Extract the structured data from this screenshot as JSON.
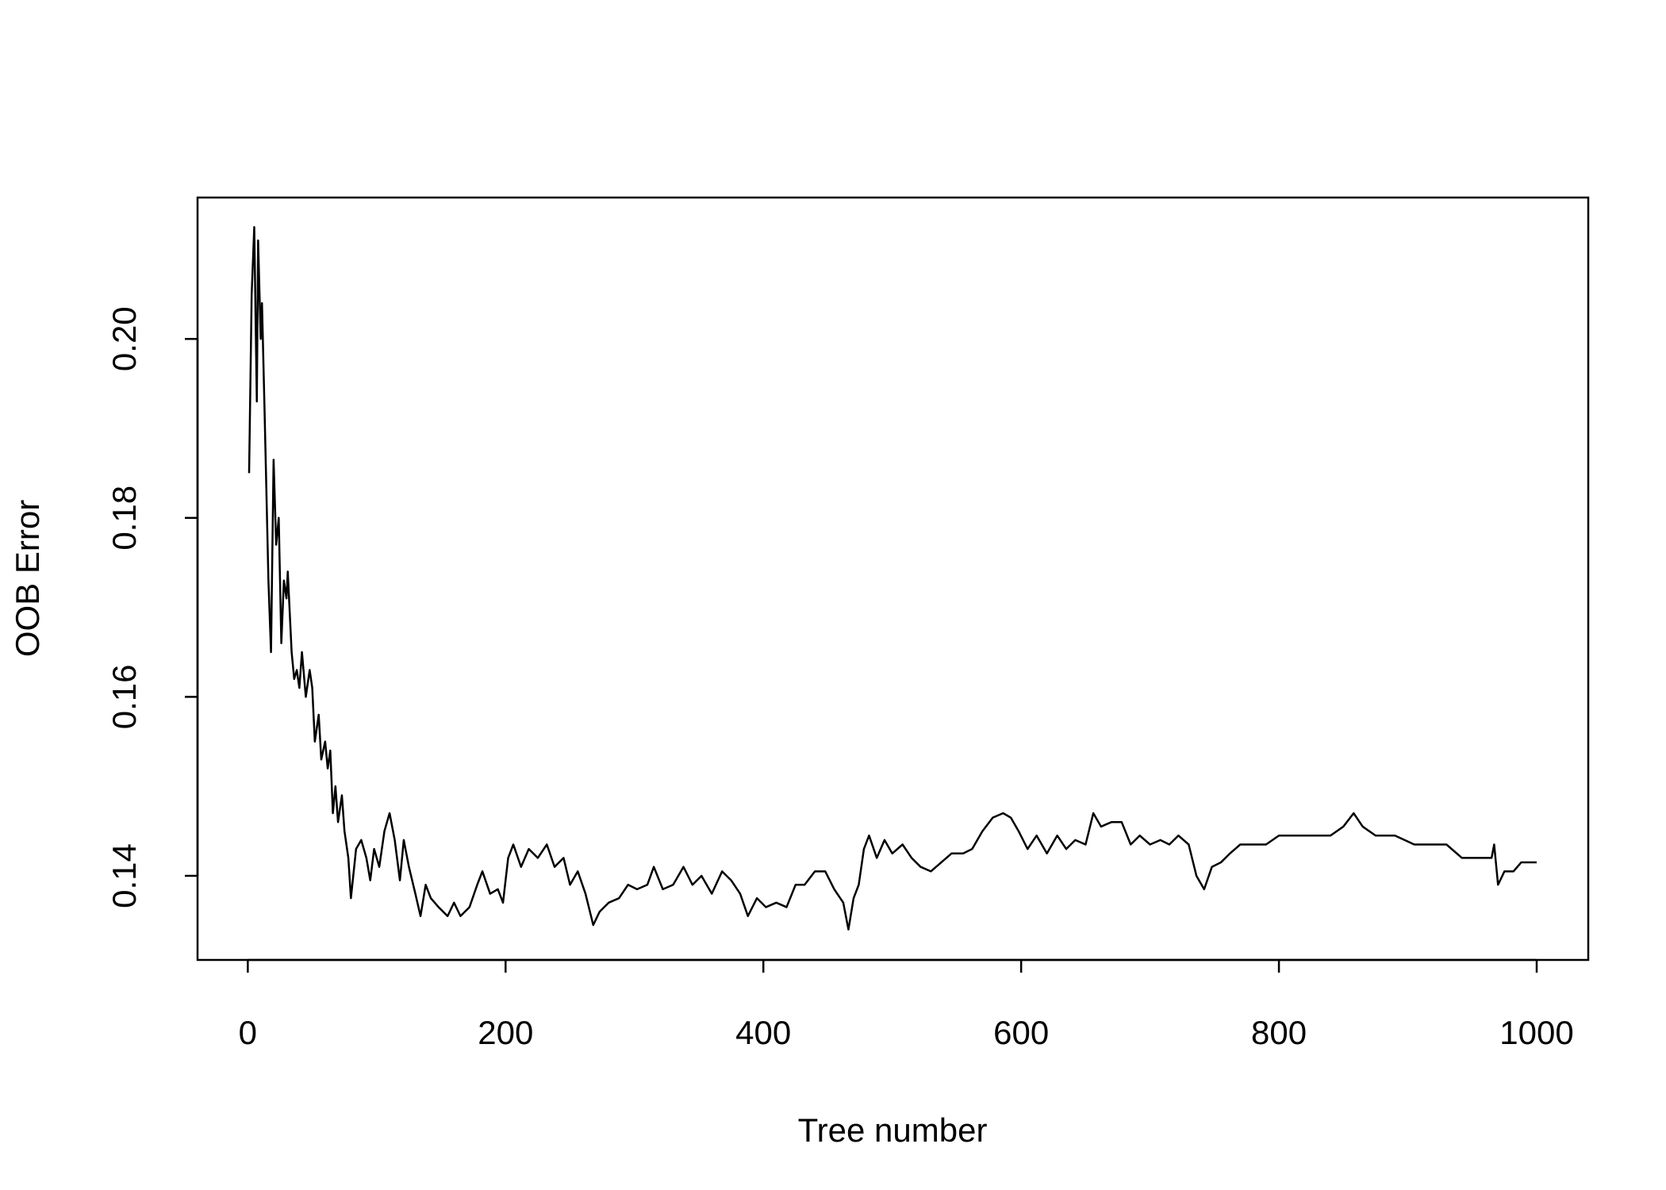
{
  "chart_data": {
    "type": "line",
    "x_label": "Tree number",
    "y_label": "OOB Error",
    "x": [
      1,
      3,
      5,
      7,
      8,
      10,
      11,
      13,
      16,
      18,
      20,
      22,
      24,
      26,
      28,
      30,
      31,
      34,
      36,
      38,
      40,
      42,
      45,
      48,
      50,
      52,
      55,
      57,
      60,
      62,
      64,
      66,
      68,
      70,
      73,
      75,
      78,
      80,
      84,
      88,
      92,
      95,
      98,
      102,
      106,
      110,
      114,
      118,
      121,
      125,
      130,
      134,
      138,
      142,
      148,
      155,
      160,
      165,
      172,
      178,
      182,
      188,
      194,
      198,
      202,
      206,
      212,
      218,
      225,
      232,
      238,
      245,
      250,
      256,
      262,
      268,
      273,
      280,
      288,
      295,
      302,
      310,
      315,
      322,
      330,
      338,
      345,
      352,
      360,
      368,
      375,
      382,
      388,
      395,
      402,
      410,
      418,
      425,
      432,
      440,
      448,
      455,
      462,
      466,
      470,
      474,
      478,
      482,
      488,
      494,
      500,
      508,
      515,
      522,
      530,
      538,
      546,
      555,
      562,
      570,
      578,
      586,
      592,
      598,
      605,
      612,
      620,
      628,
      635,
      642,
      650,
      656,
      662,
      670,
      678,
      685,
      692,
      700,
      708,
      715,
      722,
      730,
      736,
      742,
      748,
      755,
      762,
      770,
      780,
      790,
      800,
      810,
      820,
      830,
      840,
      850,
      858,
      865,
      875,
      890,
      905,
      920,
      930,
      942,
      955,
      965,
      967,
      970,
      975,
      982,
      988,
      995,
      1000
    ],
    "series": [
      {
        "color": "#000000",
        "values": [
          0.185,
          0.205,
          0.2125,
          0.193,
          0.211,
          0.2,
          0.204,
          0.192,
          0.173,
          0.165,
          0.1865,
          0.177,
          0.18,
          0.166,
          0.173,
          0.171,
          0.174,
          0.165,
          0.162,
          0.163,
          0.161,
          0.165,
          0.16,
          0.163,
          0.161,
          0.155,
          0.158,
          0.153,
          0.155,
          0.152,
          0.154,
          0.147,
          0.15,
          0.146,
          0.149,
          0.145,
          0.142,
          0.1375,
          0.143,
          0.144,
          0.142,
          0.1395,
          0.143,
          0.141,
          0.145,
          0.147,
          0.144,
          0.1395,
          0.144,
          0.141,
          0.138,
          0.1355,
          0.139,
          0.1375,
          0.1365,
          0.1355,
          0.137,
          0.1355,
          0.1365,
          0.139,
          0.1405,
          0.138,
          0.1385,
          0.137,
          0.142,
          0.1435,
          0.141,
          0.143,
          0.142,
          0.1435,
          0.141,
          0.142,
          0.139,
          0.1405,
          0.138,
          0.1345,
          0.136,
          0.137,
          0.1375,
          0.139,
          0.1385,
          0.139,
          0.141,
          0.1385,
          0.139,
          0.141,
          0.139,
          0.14,
          0.138,
          0.1405,
          0.1395,
          0.138,
          0.1355,
          0.1375,
          0.1365,
          0.137,
          0.1365,
          0.139,
          0.139,
          0.1405,
          0.1405,
          0.1385,
          0.137,
          0.134,
          0.1375,
          0.139,
          0.143,
          0.1445,
          0.142,
          0.144,
          0.1425,
          0.1435,
          0.142,
          0.141,
          0.1405,
          0.1415,
          0.1425,
          0.1425,
          0.143,
          0.145,
          0.1465,
          0.147,
          0.1465,
          0.145,
          0.143,
          0.1445,
          0.1425,
          0.1445,
          0.143,
          0.144,
          0.1435,
          0.147,
          0.1455,
          0.146,
          0.146,
          0.1435,
          0.1445,
          0.1435,
          0.144,
          0.1435,
          0.1445,
          0.1435,
          0.14,
          0.1385,
          0.141,
          0.1415,
          0.1425,
          0.1435,
          0.1435,
          0.1435,
          0.1445,
          0.1445,
          0.1445,
          0.1445,
          0.1445,
          0.1455,
          0.147,
          0.1455,
          0.1445,
          0.1445,
          0.1435,
          0.1435,
          0.1435,
          0.142,
          0.142,
          0.142,
          0.1435,
          0.139,
          0.1405,
          0.1405,
          0.1415,
          0.1415,
          0.1415
        ]
      }
    ],
    "xlim": [
      -39,
      1040
    ],
    "ylim": [
      0.1306,
      0.2158
    ],
    "xticks": [
      0,
      200,
      400,
      600,
      800,
      1000
    ],
    "yticks": [
      {
        "value": 0.14,
        "label": "0.14"
      },
      {
        "value": 0.16,
        "label": "0.16"
      },
      {
        "value": 0.18,
        "label": "0.18"
      },
      {
        "value": 0.2,
        "label": "0.20"
      }
    ],
    "grid": false
  }
}
